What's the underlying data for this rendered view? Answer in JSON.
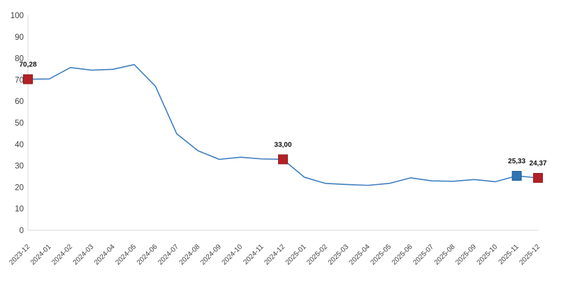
{
  "page": {
    "background": "#ffffff"
  },
  "chart_data": {
    "type": "line",
    "title": "",
    "xlabel": "",
    "ylabel": "",
    "categories": [
      "2023-12",
      "2024-01",
      "2024-02",
      "2024-03",
      "2024-04",
      "2024-05",
      "2024-06",
      "2024-07",
      "2024-08",
      "2024-09",
      "2024-10",
      "2024-11",
      "2024-12",
      "2025-01",
      "2025-02",
      "2025-03",
      "2025-04",
      "2025-05",
      "2025-06",
      "2025-07",
      "2025-08",
      "2025-09",
      "2025-10",
      "2025-11",
      "2025-12"
    ],
    "values": [
      70.28,
      70.4,
      75.7,
      74.5,
      74.9,
      77.1,
      67.0,
      44.9,
      37.0,
      33.0,
      34.0,
      33.2,
      33.0,
      24.7,
      21.8,
      21.3,
      20.9,
      21.8,
      24.4,
      23.0,
      22.8,
      23.6,
      22.6,
      25.33,
      24.37
    ],
    "ylim": [
      0,
      100
    ],
    "yticks": [
      0,
      10,
      20,
      30,
      40,
      50,
      60,
      70,
      80,
      90,
      100
    ],
    "grid": false,
    "legend_position": "none",
    "line_color": "#3e7ec0",
    "axis_color": "#d9d9d9",
    "tick_label_color": "#3f3f3f",
    "data_label_color": "#111111",
    "annotations": [
      {
        "index": 0,
        "category": "2023-12",
        "label": "70,28",
        "marker_color": "#b32025",
        "marker_stroke": "#8e191d"
      },
      {
        "index": 12,
        "category": "2024-12",
        "label": "33,00",
        "marker_color": "#b32025",
        "marker_stroke": "#8e191d"
      },
      {
        "index": 23,
        "category": "2025-11",
        "label": "25,33",
        "marker_color": "#2e75b6",
        "marker_stroke": "#1f5d96"
      },
      {
        "index": 24,
        "category": "2025-12",
        "label": "24,37",
        "marker_color": "#b32025",
        "marker_stroke": "#8e191d"
      }
    ]
  }
}
